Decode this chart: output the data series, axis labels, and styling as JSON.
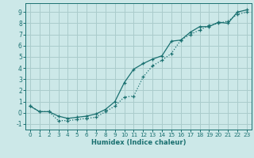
{
  "xlabel": "Humidex (Indice chaleur)",
  "background_color": "#cce8e8",
  "grid_color": "#aacccc",
  "line_color": "#1a7070",
  "xlim": [
    -0.5,
    23.5
  ],
  "ylim": [
    -1.5,
    9.8
  ],
  "xticks": [
    0,
    1,
    2,
    3,
    4,
    5,
    6,
    7,
    8,
    9,
    10,
    11,
    12,
    13,
    14,
    15,
    16,
    17,
    18,
    19,
    20,
    21,
    22,
    23
  ],
  "yticks": [
    -1,
    0,
    1,
    2,
    3,
    4,
    5,
    6,
    7,
    8,
    9
  ],
  "line1_x": [
    0,
    1,
    2,
    3,
    4,
    5,
    6,
    7,
    8,
    9,
    10,
    11,
    12,
    13,
    14,
    15,
    16,
    17,
    18,
    19,
    20,
    21,
    22,
    23
  ],
  "line1_y": [
    0.6,
    0.1,
    0.1,
    -0.3,
    -0.5,
    -0.4,
    -0.3,
    -0.1,
    0.3,
    1.0,
    2.7,
    3.9,
    4.4,
    4.8,
    5.1,
    6.4,
    6.5,
    7.2,
    7.7,
    7.7,
    8.1,
    8.0,
    9.0,
    9.2
  ],
  "line2_x": [
    0,
    1,
    2,
    3,
    4,
    5,
    6,
    7,
    8,
    9,
    10,
    11,
    12,
    13,
    14,
    15,
    16,
    17,
    18,
    19,
    20,
    21,
    22,
    23
  ],
  "line2_y": [
    0.6,
    0.1,
    0.1,
    -0.7,
    -0.7,
    -0.6,
    -0.5,
    -0.4,
    0.1,
    0.6,
    1.4,
    1.5,
    3.2,
    4.2,
    4.7,
    5.3,
    6.5,
    7.0,
    7.4,
    7.8,
    8.0,
    8.2,
    8.8,
    9.0
  ]
}
